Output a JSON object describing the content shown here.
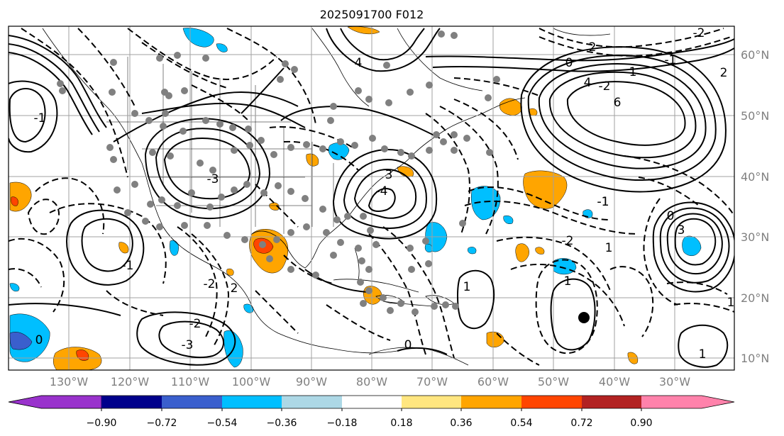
{
  "title": "2025091700 F012",
  "lon_ticks": [
    "130°W",
    "120°W",
    "110°W",
    "100°W",
    "90°W",
    "80°W",
    "70°W",
    "60°W",
    "50°W",
    "40°W",
    "30°W"
  ],
  "lat_ticks": [
    "60°N",
    "50°N",
    "40°N",
    "30°N",
    "20°N",
    "10°N"
  ],
  "colorbar": {
    "labels": [
      "−0.90",
      "−0.72",
      "−0.54",
      "−0.36",
      "−0.18",
      "0.18",
      "0.36",
      "0.54",
      "0.72",
      "0.90"
    ],
    "colors": [
      "#9932cc",
      "#00008b",
      "#3a5fcd",
      "#00bfff",
      "#add8e6",
      "#ffffff",
      "#ffe680",
      "#ffa500",
      "#ff4500",
      "#b22222",
      "#ff82ab"
    ],
    "extend": "both"
  },
  "contour_labels": [
    "-2",
    "2",
    "-1",
    "1",
    "0",
    "4",
    "-2",
    "6",
    "2",
    "-3",
    "3",
    "-4",
    "4",
    "-1",
    "1",
    "0",
    "-1",
    "2",
    "-2",
    "1",
    "-3",
    "3",
    "-2",
    "1",
    "0",
    "-1",
    "1",
    "-2",
    "1",
    "0",
    "-1"
  ],
  "colors": {
    "frame": "#000000",
    "grid": "#a0a0a0",
    "land_border": "#000000",
    "dots": "#808080",
    "marker": "#000000"
  }
}
